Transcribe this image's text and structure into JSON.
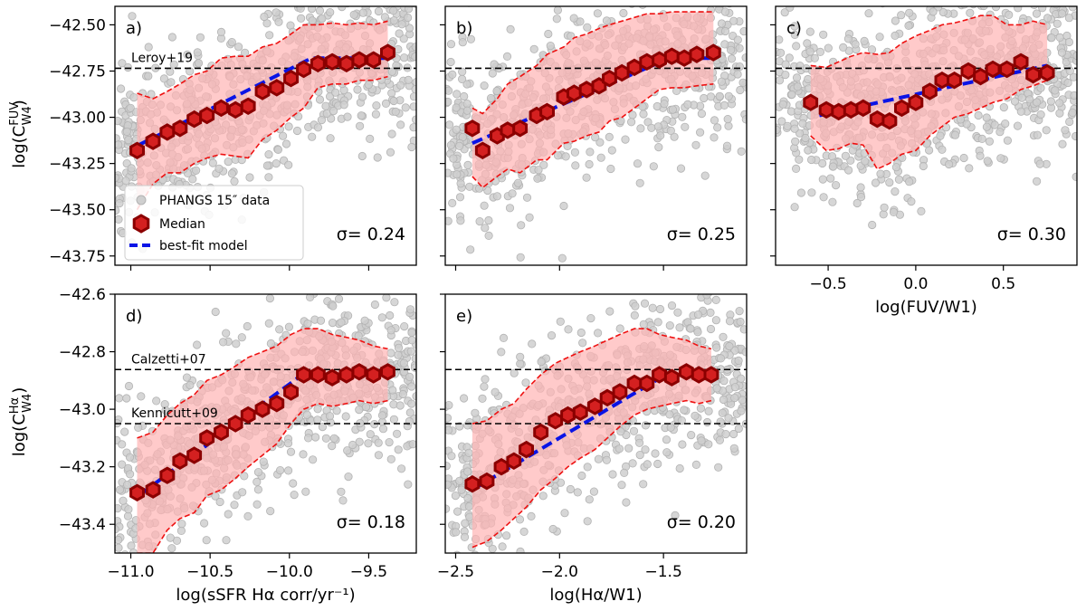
{
  "chart_data": [
    {
      "id": "a",
      "type": "scatter",
      "letter": "a)",
      "sigma_label": "σ= 0.24",
      "xlim": [
        -11.1,
        -9.2
      ],
      "ylim": [
        -43.8,
        -42.4
      ],
      "xticks": [
        -11.0,
        -10.5,
        -10.0,
        -9.5
      ],
      "yticks": [
        -42.5,
        -42.75,
        -43.0,
        -43.25,
        -43.5,
        -43.75
      ],
      "ytick_labels": [
        "−42.50",
        "−42.75",
        "−43.00",
        "−43.25",
        "−43.50",
        "−43.75"
      ],
      "show_xtick_labels": false,
      "ylabel_main": "log(C",
      "ylabel_sup": "FUV",
      "ylabel_sub": "W4",
      "ylabel_close": ")",
      "xlabel": "",
      "median_x": [
        -10.96,
        -10.86,
        -10.77,
        -10.69,
        -10.6,
        -10.52,
        -10.43,
        -10.34,
        -10.26,
        -10.17,
        -10.08,
        -9.99,
        -9.91,
        -9.82,
        -9.73,
        -9.64,
        -9.56,
        -9.47,
        -9.38
      ],
      "median_y": [
        -43.18,
        -43.13,
        -43.08,
        -43.06,
        -43.01,
        -42.99,
        -42.95,
        -42.96,
        -42.94,
        -42.86,
        -42.84,
        -42.79,
        -42.74,
        -42.71,
        -42.7,
        -42.71,
        -42.69,
        -42.69,
        -42.65
      ],
      "upper": [
        -42.87,
        -42.9,
        -42.86,
        -42.82,
        -42.77,
        -42.75,
        -42.68,
        -42.67,
        -42.67,
        -42.62,
        -42.6,
        -42.55,
        -42.5,
        -42.5,
        -42.49,
        -42.5,
        -42.49,
        -42.5,
        -42.48
      ],
      "lower": [
        -43.5,
        -43.36,
        -43.3,
        -43.3,
        -43.25,
        -43.22,
        -43.2,
        -43.21,
        -43.22,
        -43.12,
        -43.07,
        -43.0,
        -42.95,
        -42.84,
        -42.82,
        -42.82,
        -42.8,
        -42.8,
        -42.78
      ],
      "fit_x": [
        -10.95,
        -9.86,
        -9.4
      ],
      "fit_y": [
        -43.15,
        -42.68,
        -42.68
      ],
      "ref_lines": [
        {
          "y": -42.735,
          "label": "Leroy+19"
        }
      ],
      "scatter": {
        "seed": 11,
        "n": 700,
        "xrange": [
          -11.1,
          -9.2
        ]
      }
    },
    {
      "id": "b",
      "type": "scatter",
      "letter": "b)",
      "sigma_label": "σ= 0.25",
      "xlim": [
        -2.55,
        -1.1
      ],
      "ylim": [
        -43.8,
        -42.4
      ],
      "xticks": [
        -2.5,
        -2.0,
        -1.5
      ],
      "yticks": [
        -42.5,
        -42.75,
        -43.0,
        -43.25,
        -43.5,
        -43.75
      ],
      "ytick_labels": [],
      "show_xtick_labels": false,
      "xlabel": "",
      "median_x": [
        -2.42,
        -2.37,
        -2.3,
        -2.25,
        -2.19,
        -2.11,
        -2.06,
        -1.98,
        -1.93,
        -1.87,
        -1.81,
        -1.76,
        -1.7,
        -1.64,
        -1.58,
        -1.52,
        -1.46,
        -1.4,
        -1.34,
        -1.26
      ],
      "median_y": [
        -43.06,
        -43.18,
        -43.1,
        -43.07,
        -43.06,
        -42.99,
        -42.97,
        -42.89,
        -42.87,
        -42.85,
        -42.83,
        -42.79,
        -42.76,
        -42.73,
        -42.7,
        -42.69,
        -42.67,
        -42.68,
        -42.66,
        -42.65
      ],
      "upper": [
        -42.95,
        -42.98,
        -42.9,
        -42.82,
        -42.78,
        -42.72,
        -42.66,
        -42.62,
        -42.57,
        -42.55,
        -42.52,
        -42.5,
        -42.48,
        -42.46,
        -42.44,
        -42.44,
        -42.43,
        -42.43,
        -42.43,
        -42.43
      ],
      "lower": [
        -43.32,
        -43.38,
        -43.32,
        -43.28,
        -43.3,
        -43.23,
        -43.23,
        -43.14,
        -43.13,
        -43.1,
        -43.08,
        -43.02,
        -43.0,
        -42.95,
        -42.9,
        -42.85,
        -42.84,
        -42.84,
        -42.83,
        -42.82
      ],
      "fit_x": [
        -2.42,
        -1.47,
        -1.26
      ],
      "fit_y": [
        -43.14,
        -42.68,
        -42.68
      ],
      "ref_lines": [
        {
          "y": -42.735,
          "label": ""
        }
      ],
      "scatter": {
        "seed": 23,
        "n": 700,
        "xrange": [
          -2.55,
          -1.1
        ]
      }
    },
    {
      "id": "c",
      "type": "scatter",
      "letter": "c)",
      "sigma_label": "σ= 0.30",
      "xlim": [
        -0.8,
        0.92
      ],
      "ylim": [
        -43.8,
        -42.4
      ],
      "xticks": [
        -0.5,
        0.0,
        0.5
      ],
      "xtick_labels": [
        "−0.5",
        "0.0",
        "0.5"
      ],
      "yticks": [
        -42.5,
        -42.75,
        -43.0,
        -43.25,
        -43.5,
        -43.75
      ],
      "ytick_labels": [],
      "show_xtick_labels": true,
      "xlabel": "log(FUV/W1)",
      "median_x": [
        -0.6,
        -0.51,
        -0.44,
        -0.37,
        -0.3,
        -0.22,
        -0.15,
        -0.08,
        0.0,
        0.08,
        0.15,
        0.22,
        0.3,
        0.37,
        0.44,
        0.52,
        0.6,
        0.67,
        0.75
      ],
      "median_y": [
        -42.92,
        -42.96,
        -42.97,
        -42.96,
        -42.95,
        -43.01,
        -43.02,
        -42.95,
        -42.92,
        -42.86,
        -42.8,
        -42.8,
        -42.75,
        -42.78,
        -42.74,
        -42.74,
        -42.7,
        -42.77,
        -42.76
      ],
      "upper": [
        -42.72,
        -42.73,
        -42.7,
        -42.67,
        -42.65,
        -42.66,
        -42.65,
        -42.6,
        -42.56,
        -42.53,
        -42.5,
        -42.49,
        -42.47,
        -42.45,
        -42.45,
        -42.5,
        -42.5,
        -42.48,
        -42.5
      ],
      "lower": [
        -43.1,
        -43.18,
        -43.17,
        -43.14,
        -43.15,
        -43.28,
        -43.25,
        -43.2,
        -43.18,
        -43.1,
        -43.05,
        -43.0,
        -42.98,
        -42.95,
        -42.92,
        -42.9,
        -42.85,
        -42.83,
        -42.8
      ],
      "fit_x": [
        -0.55,
        0.75
      ],
      "fit_y": [
        -42.99,
        -42.72
      ],
      "ref_lines": [
        {
          "y": -42.735,
          "label": ""
        }
      ],
      "scatter": {
        "seed": 37,
        "n": 800,
        "xrange": [
          -0.8,
          0.92
        ]
      }
    },
    {
      "id": "d",
      "type": "scatter",
      "letter": "d)",
      "sigma_label": "σ= 0.18",
      "xlim": [
        -11.1,
        -9.2
      ],
      "ylim": [
        -43.5,
        -42.6
      ],
      "xticks": [
        -11.0,
        -10.5,
        -10.0,
        -9.5
      ],
      "xtick_labels": [
        "−11.0",
        "−10.5",
        "−10.0",
        "−9.5"
      ],
      "yticks": [
        -42.6,
        -42.8,
        -43.0,
        -43.2,
        -43.4
      ],
      "ytick_labels": [
        "−42.6",
        "−42.8",
        "−43.0",
        "−43.2",
        "−43.4"
      ],
      "show_xtick_labels": true,
      "ylabel_main": "log(C",
      "ylabel_sup": "Hα",
      "ylabel_sub": "W4",
      "ylabel_close": ")",
      "xlabel": "log(sSFR Hα corr/yr⁻¹)",
      "median_x": [
        -10.96,
        -10.86,
        -10.77,
        -10.69,
        -10.6,
        -10.52,
        -10.43,
        -10.34,
        -10.26,
        -10.17,
        -10.08,
        -9.99,
        -9.91,
        -9.82,
        -9.73,
        -9.64,
        -9.56,
        -9.47,
        -9.38
      ],
      "median_y": [
        -43.29,
        -43.28,
        -43.23,
        -43.18,
        -43.16,
        -43.1,
        -43.08,
        -43.05,
        -43.02,
        -43.0,
        -42.98,
        -42.94,
        -42.88,
        -42.88,
        -42.89,
        -42.88,
        -42.87,
        -42.88,
        -42.87
      ],
      "upper": [
        -43.1,
        -43.08,
        -43.02,
        -42.98,
        -42.95,
        -42.9,
        -42.88,
        -42.85,
        -42.82,
        -42.8,
        -42.78,
        -42.74,
        -42.72,
        -42.72,
        -42.74,
        -42.75,
        -42.76,
        -42.78,
        -42.79
      ],
      "lower": [
        -43.5,
        -43.5,
        -43.42,
        -43.38,
        -43.36,
        -43.3,
        -43.28,
        -43.24,
        -43.2,
        -43.16,
        -43.12,
        -43.05,
        -43.0,
        -42.98,
        -42.99,
        -42.98,
        -42.97,
        -42.98,
        -42.97
      ],
      "fit_x": [
        -10.95,
        -9.92,
        -9.4
      ],
      "fit_y": [
        -43.3,
        -42.88,
        -42.88
      ],
      "ref_lines": [
        {
          "y": -42.862,
          "label": "Calzetti+07"
        },
        {
          "y": -43.05,
          "label": "Kennicutt+09"
        }
      ],
      "scatter": {
        "seed": 53,
        "n": 750,
        "xrange": [
          -11.1,
          -9.2
        ]
      }
    },
    {
      "id": "e",
      "type": "scatter",
      "letter": "e)",
      "sigma_label": "σ= 0.20",
      "xlim": [
        -2.55,
        -1.1
      ],
      "ylim": [
        -43.5,
        -42.6
      ],
      "xticks": [
        -2.5,
        -2.0,
        -1.5
      ],
      "xtick_labels": [
        "−2.5",
        "−2.0",
        "−1.5"
      ],
      "yticks": [
        -42.6,
        -42.8,
        -43.0,
        -43.2,
        -43.4
      ],
      "ytick_labels": [],
      "show_xtick_labels": true,
      "xlabel": "log(Hα/W1)",
      "median_x": [
        -2.42,
        -2.35,
        -2.28,
        -2.22,
        -2.16,
        -2.09,
        -2.02,
        -1.96,
        -1.9,
        -1.83,
        -1.77,
        -1.71,
        -1.64,
        -1.58,
        -1.52,
        -1.46,
        -1.39,
        -1.33,
        -1.27
      ],
      "median_y": [
        -43.26,
        -43.25,
        -43.2,
        -43.18,
        -43.14,
        -43.08,
        -43.04,
        -43.02,
        -43.01,
        -42.99,
        -42.96,
        -42.94,
        -42.91,
        -42.91,
        -42.88,
        -42.89,
        -42.87,
        -42.88,
        -42.88
      ],
      "upper": [
        -43.05,
        -43.04,
        -43.0,
        -42.98,
        -42.93,
        -42.88,
        -42.84,
        -42.82,
        -42.8,
        -42.78,
        -42.76,
        -42.74,
        -42.72,
        -42.72,
        -42.74,
        -42.75,
        -42.76,
        -42.78,
        -42.79
      ],
      "lower": [
        -43.48,
        -43.46,
        -43.42,
        -43.38,
        -43.34,
        -43.28,
        -43.24,
        -43.2,
        -43.17,
        -43.14,
        -43.1,
        -43.06,
        -43.02,
        -43.0,
        -42.99,
        -42.98,
        -42.97,
        -42.98,
        -42.97
      ],
      "fit_x": [
        -2.42,
        -1.49,
        -1.27
      ],
      "fit_y": [
        -43.28,
        -42.88,
        -42.88
      ],
      "ref_lines": [
        {
          "y": -42.862,
          "label": ""
        },
        {
          "y": -43.05,
          "label": ""
        }
      ],
      "scatter": {
        "seed": 71,
        "n": 700,
        "xrange": [
          -2.55,
          -1.1
        ]
      }
    }
  ],
  "legend": {
    "data_label": "PHANGS 15″ data",
    "median_label": "Median",
    "fit_label": "best-fit model"
  },
  "colors": {
    "scatter_fill": "#cfcfcf",
    "scatter_edge": "#b3b3b3",
    "band_fill": "#ffb3b3",
    "band_edge": "#ee1111",
    "median_fill": "#d42020",
    "median_edge": "#8b0000",
    "fit_line": "#0a14e6",
    "ref_line": "#000000"
  }
}
